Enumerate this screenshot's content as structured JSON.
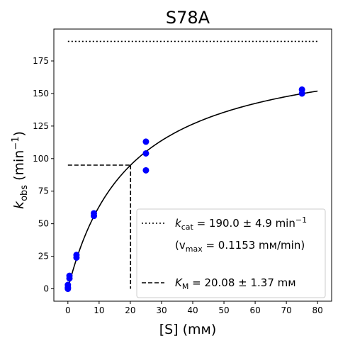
{
  "chart_data": {
    "type": "scatter",
    "title": "S78A",
    "xlabel": "[S] (mм)",
    "ylabel_main": "k",
    "ylabel_sub": "obs",
    "ylabel_unit_prefix": " (min",
    "ylabel_unit_sup": "−1",
    "ylabel_unit_suffix": ")",
    "xlim": [
      -4.5,
      84.5
    ],
    "ylim": [
      -9.5,
      199.5
    ],
    "xticks": [
      0,
      10,
      20,
      30,
      40,
      50,
      60,
      70,
      80
    ],
    "yticks": [
      0,
      25,
      50,
      75,
      100,
      125,
      150,
      175
    ],
    "grid": false,
    "legend_position": "lower right",
    "points": {
      "color": "#0000ff",
      "x": [
        0,
        0,
        0,
        0.5,
        0.5,
        2.75,
        2.75,
        8.33,
        8.33,
        25,
        25,
        25,
        75,
        75
      ],
      "y": [
        0,
        1,
        3,
        8,
        10,
        24,
        26,
        56,
        58,
        113,
        104,
        91,
        153,
        150
      ]
    },
    "fit": {
      "model": "michaelis-menten",
      "kcat": 190.0,
      "km": 20.08,
      "x_range": [
        0,
        80
      ],
      "color": "#000000"
    },
    "kcat_line": {
      "y": 190.0,
      "x_range": [
        0,
        80
      ],
      "style": "dotted"
    },
    "km_lines": {
      "x": 20.08,
      "y": 95.0,
      "style": "dashed"
    },
    "legend": {
      "kcat_prefix": "k",
      "kcat_sub": "cat",
      "kcat_value": " = 190.0 ± 4.9 min",
      "kcat_sup": "−1",
      "vmax_open": "(v",
      "vmax_sub": "max",
      "vmax_value": " = 0.1153 mм/min)",
      "km_prefix": "K",
      "km_sub": "M",
      "km_value": " = 20.08 ± 1.37 mм"
    }
  }
}
